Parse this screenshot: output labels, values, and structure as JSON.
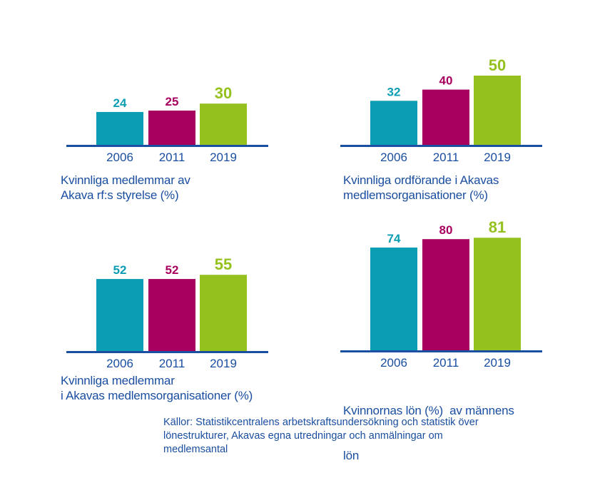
{
  "colors": {
    "series": [
      "#0b9db3",
      "#a8005f",
      "#95c11f"
    ],
    "axis": "#1a4ea0",
    "text": "#1a4ea0"
  },
  "chart_data": [
    {
      "type": "bar",
      "title": "Kvinnliga medlemmar av Akava rf:s styrelse (%)",
      "caption_lines": [
        "Kvinnliga medlemmar av",
        "Akava rf:s styrelse (%)"
      ],
      "categories": [
        "2006",
        "2011",
        "2019"
      ],
      "values": [
        24,
        25,
        30
      ],
      "value_labels": [
        "24",
        "25",
        "30"
      ],
      "xlabel": "",
      "ylabel": "",
      "ylim": [
        0,
        100
      ]
    },
    {
      "type": "bar",
      "title": "Kvinnliga ordförande i Akavas medlemsorganisationer (%)",
      "caption_lines": [
        "Kvinnliga ordförande i Akavas",
        "medlemsorganisationer (%)"
      ],
      "categories": [
        "2006",
        "2011",
        "2019"
      ],
      "values": [
        32,
        40,
        50
      ],
      "value_labels": [
        "32",
        "40",
        "50"
      ],
      "xlabel": "",
      "ylabel": "",
      "ylim": [
        0,
        100
      ]
    },
    {
      "type": "bar",
      "title": "Kvinnliga medlemmar i Akavas medlemsorganisationer (%)",
      "caption_lines": [
        "Kvinnliga medlemmar",
        "i Akavas medlemsorganisationer (%)"
      ],
      "categories": [
        "2006",
        "2011",
        "2019"
      ],
      "values": [
        52,
        52,
        55
      ],
      "value_labels": [
        "52",
        "52",
        "55"
      ],
      "xlabel": "",
      "ylabel": "",
      "ylim": [
        0,
        100
      ]
    },
    {
      "type": "bar",
      "title": "Kvinnornas lön (%)  av männens lön",
      "caption_lines": [
        "Kvinnornas lön (%)  av männens",
        "lön"
      ],
      "categories": [
        "2006",
        "2011",
        "2019"
      ],
      "values": [
        74,
        80,
        81
      ],
      "value_labels": [
        "74",
        "80",
        "81"
      ],
      "xlabel": "",
      "ylabel": "",
      "ylim": [
        0,
        100
      ]
    }
  ],
  "source": {
    "lines": [
      "Källor: Statistikcentralens arbetskraftsundersökning och statistik över",
      "lönestrukturer, Akavas egna utredningar och anmälningar om",
      "medlemsantal"
    ]
  }
}
